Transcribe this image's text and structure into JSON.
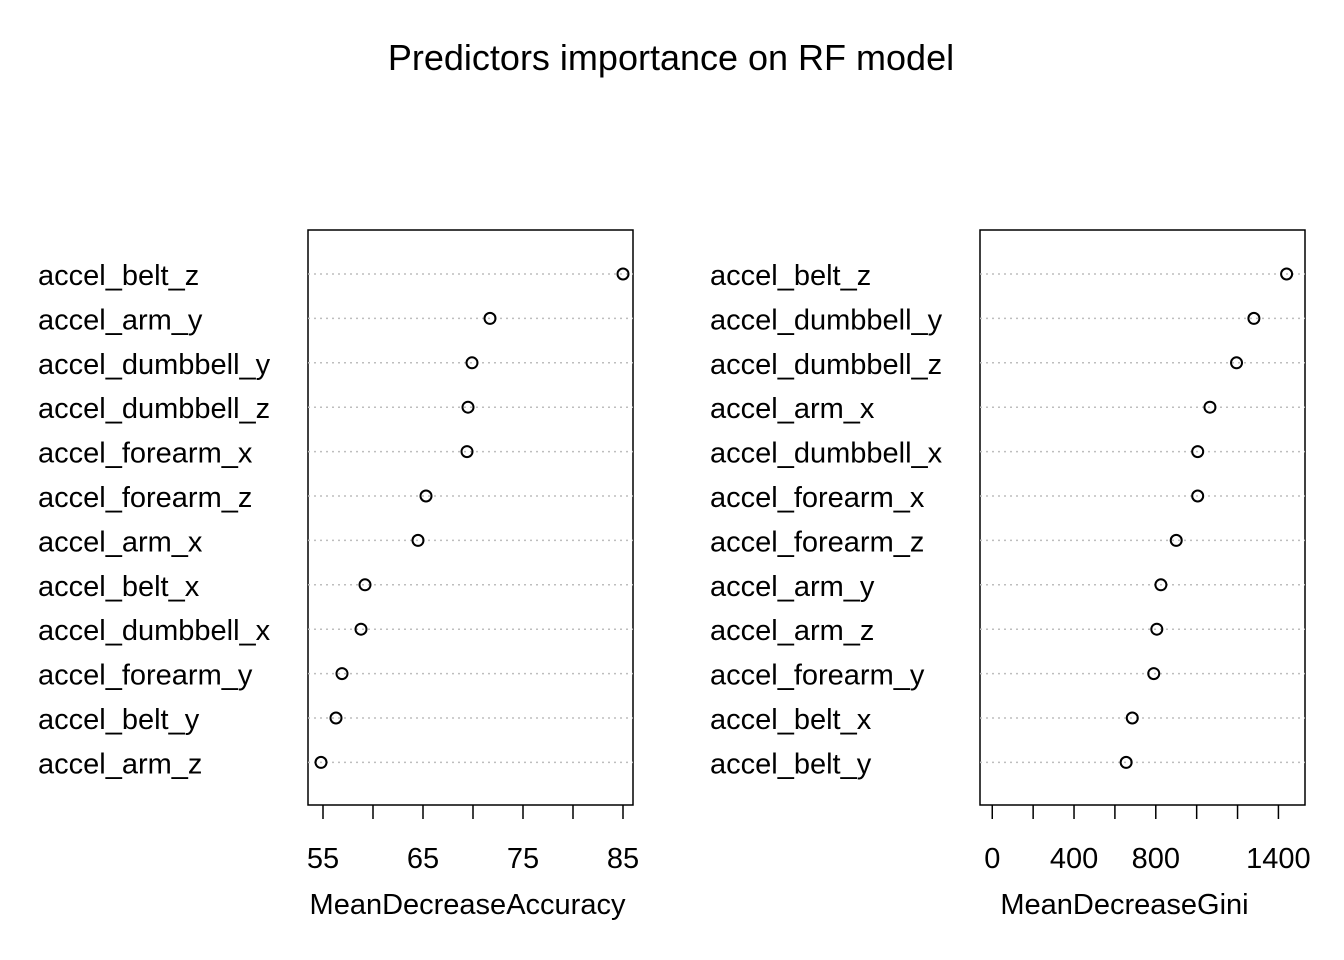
{
  "chart_data": [
    {
      "type": "scatter",
      "title": "Predictors importance on RF model",
      "xlabel": "MeanDecreaseAccuracy",
      "ylabel": "",
      "xlim": [
        53.5,
        86
      ],
      "xticks": [
        55,
        60,
        65,
        70,
        75,
        80,
        85
      ],
      "xtick_labels": [
        "55",
        "",
        "65",
        "",
        "75",
        "",
        "85"
      ],
      "categories": [
        "accel_belt_z",
        "accel_arm_y",
        "accel_dumbbell_y",
        "accel_dumbbell_z",
        "accel_forearm_x",
        "accel_forearm_z",
        "accel_arm_x",
        "accel_belt_x",
        "accel_dumbbell_x",
        "accel_forearm_y",
        "accel_belt_y",
        "accel_arm_z"
      ],
      "values": [
        85.0,
        71.7,
        69.9,
        69.5,
        69.4,
        65.3,
        64.5,
        59.2,
        58.8,
        56.9,
        56.3,
        54.8
      ],
      "grid": "dotted horizontal",
      "legend": "none"
    },
    {
      "type": "scatter",
      "title": "",
      "xlabel": "MeanDecreaseGini",
      "ylabel": "",
      "xlim": [
        -60,
        1530
      ],
      "xticks": [
        0,
        200,
        400,
        600,
        800,
        1000,
        1200,
        1400
      ],
      "xtick_labels": [
        "0",
        "",
        "400",
        "",
        "800",
        "",
        "",
        "1400"
      ],
      "categories": [
        "accel_belt_z",
        "accel_dumbbell_y",
        "accel_dumbbell_z",
        "accel_arm_x",
        "accel_dumbbell_x",
        "accel_forearm_x",
        "accel_forearm_z",
        "accel_arm_y",
        "accel_arm_z",
        "accel_forearm_y",
        "accel_belt_x",
        "accel_belt_y"
      ],
      "values": [
        1440,
        1280,
        1195,
        1065,
        1005,
        1005,
        900,
        825,
        805,
        790,
        685,
        655
      ],
      "grid": "dotted horizontal",
      "legend": "none"
    }
  ]
}
